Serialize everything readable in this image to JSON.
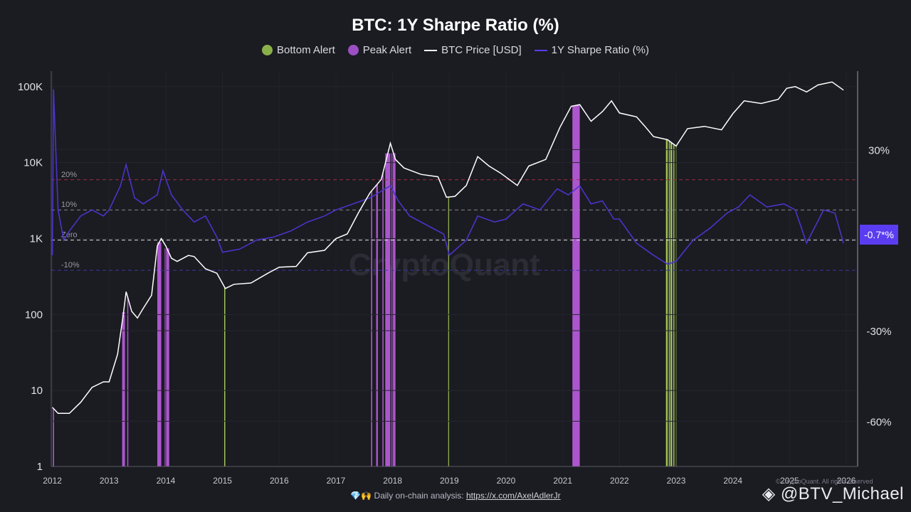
{
  "chart_data": {
    "type": "line",
    "title": "BTC: 1Y Sharpe Ratio (%)",
    "legend": [
      {
        "label": "Bottom Alert",
        "color": "#8ab04a",
        "shape": "dot"
      },
      {
        "label": "Peak Alert",
        "color": "#9b4fc2",
        "shape": "dot"
      },
      {
        "label": "BTC Price [USD]",
        "color": "#ffffff",
        "shape": "line"
      },
      {
        "label": "1Y Sharpe Ratio (%)",
        "color": "#5a3df0",
        "shape": "line"
      }
    ],
    "legend_placement": "top-center",
    "x_ticks": [
      "2012",
      "2013",
      "2014",
      "2015",
      "2016",
      "2017",
      "2018",
      "2019",
      "2020",
      "2021",
      "2022",
      "2023",
      "2024",
      "2025",
      "2026"
    ],
    "x_range": [
      2011.98,
      2026.2
    ],
    "left_axis": {
      "scale": "log",
      "range": [
        1,
        160000
      ],
      "ticks": [
        1,
        10,
        100,
        1000,
        10000,
        100000
      ],
      "tick_labels": [
        "1",
        "10",
        "100",
        "1K",
        "10K",
        "100K"
      ]
    },
    "right_axis": {
      "range": [
        -75,
        56
      ],
      "ticks": [
        30,
        -30,
        -60
      ],
      "tick_labels": [
        "30%",
        "-30%",
        "-60%"
      ]
    },
    "reference_lines": [
      {
        "label": "20%",
        "value": 20,
        "color": "#a0303a"
      },
      {
        "label": "10%",
        "value": 10,
        "color": "#8a8a8a"
      },
      {
        "label": "Zero",
        "value": 0,
        "color": "#e0e0e0"
      },
      {
        "label": "-10%",
        "value": -10,
        "color": "#3a3aa0"
      }
    ],
    "current_value_label": "-0.7*%",
    "btc_price": {
      "name": "BTC Price [USD]",
      "x": [
        2012.0,
        2012.1,
        2012.3,
        2012.5,
        2012.7,
        2012.9,
        2013.0,
        2013.15,
        2013.25,
        2013.3,
        2013.4,
        2013.5,
        2013.6,
        2013.75,
        2013.85,
        2013.92,
        2014.0,
        2014.1,
        2014.2,
        2014.4,
        2014.5,
        2014.7,
        2014.9,
        2015.05,
        2015.2,
        2015.5,
        2015.8,
        2016.0,
        2016.3,
        2016.5,
        2016.8,
        2017.0,
        2017.2,
        2017.4,
        2017.6,
        2017.8,
        2017.96,
        2018.05,
        2018.2,
        2018.5,
        2018.8,
        2018.95,
        2019.1,
        2019.3,
        2019.5,
        2019.7,
        2019.9,
        2020.2,
        2020.4,
        2020.7,
        2020.95,
        2021.15,
        2021.3,
        2021.5,
        2021.7,
        2021.86,
        2022.0,
        2022.3,
        2022.45,
        2022.6,
        2022.85,
        2023.0,
        2023.2,
        2023.5,
        2023.8,
        2024.0,
        2024.2,
        2024.5,
        2024.8,
        2024.95,
        2025.1,
        2025.3,
        2025.5,
        2025.75,
        2025.95
      ],
      "y": [
        6,
        5,
        5,
        7,
        11,
        13,
        13,
        30,
        100,
        200,
        110,
        90,
        120,
        180,
        800,
        1000,
        800,
        550,
        500,
        600,
        580,
        400,
        350,
        220,
        250,
        260,
        350,
        420,
        430,
        650,
        700,
        1000,
        1150,
        2200,
        4000,
        6000,
        18000,
        11000,
        8500,
        7000,
        6500,
        3500,
        3600,
        5000,
        12000,
        9000,
        7300,
        5000,
        9000,
        11000,
        29000,
        55000,
        58000,
        35000,
        47000,
        65000,
        45000,
        40000,
        30000,
        22000,
        20000,
        16500,
        28000,
        30000,
        27000,
        44000,
        65000,
        60000,
        68000,
        95000,
        100000,
        85000,
        105000,
        115000,
        90000
      ]
    },
    "sharpe_ratio": {
      "name": "1Y Sharpe Ratio (%)",
      "x": [
        2012.0,
        2012.02,
        2012.1,
        2012.2,
        2012.3,
        2012.5,
        2012.7,
        2012.9,
        2013.0,
        2013.2,
        2013.3,
        2013.45,
        2013.6,
        2013.85,
        2013.95,
        2014.1,
        2014.3,
        2014.5,
        2014.7,
        2014.9,
        2015.0,
        2015.3,
        2015.6,
        2015.9,
        2016.2,
        2016.5,
        2016.8,
        2017.0,
        2017.3,
        2017.6,
        2017.96,
        2018.1,
        2018.3,
        2018.6,
        2018.9,
        2019.0,
        2019.3,
        2019.5,
        2019.8,
        2020.0,
        2020.3,
        2020.6,
        2020.9,
        2021.1,
        2021.3,
        2021.5,
        2021.7,
        2021.9,
        2022.0,
        2022.3,
        2022.6,
        2022.85,
        2023.0,
        2023.3,
        2023.6,
        2023.9,
        2024.1,
        2024.3,
        2024.6,
        2024.9,
        2025.1,
        2025.3,
        2025.6,
        2025.8,
        2025.95
      ],
      "y": [
        -5,
        50,
        10,
        0,
        3,
        8,
        10,
        8,
        10,
        18,
        25,
        14,
        12,
        15,
        23,
        15,
        10,
        6,
        8,
        1,
        -4,
        -3,
        0,
        1,
        3,
        6,
        8,
        10,
        12,
        14,
        18,
        13,
        8,
        5,
        2,
        -5,
        0,
        8,
        6,
        7,
        12,
        10,
        17,
        15,
        18,
        12,
        13,
        7,
        7,
        -1,
        -5,
        -8,
        -7,
        0,
        4,
        9,
        11,
        15,
        11,
        12,
        10,
        -1,
        10,
        9,
        -1
      ]
    },
    "peak_alerts": [
      [
        2012.01,
        2012.03
      ],
      [
        2013.23,
        2013.28
      ],
      [
        2013.32,
        2013.33
      ],
      [
        2013.85,
        2013.92
      ],
      [
        2013.98,
        2014.06
      ],
      [
        2017.62,
        2017.64
      ],
      [
        2017.71,
        2017.74
      ],
      [
        2017.82,
        2017.84
      ],
      [
        2017.87,
        2017.96
      ],
      [
        2017.98,
        2018.05
      ],
      [
        2021.17,
        2021.3
      ]
    ],
    "bottom_alerts": [
      [
        2015.03,
        2015.04
      ],
      [
        2018.98,
        2018.99
      ],
      [
        2022.82,
        2022.85
      ],
      [
        2022.87,
        2022.88
      ],
      [
        2022.9,
        2022.93
      ],
      [
        2022.95,
        2022.96
      ],
      [
        2022.99,
        2023.01
      ]
    ]
  },
  "footer": {
    "prefix": "💎🙌 Daily on-chain analysis: ",
    "link": "https://x.com/AxelAdlerJr"
  },
  "watermark": "◈ @BTV_Michael",
  "background_mark": "CryptoQuant",
  "copyright": "© CryptoQuant. All rights reserved"
}
